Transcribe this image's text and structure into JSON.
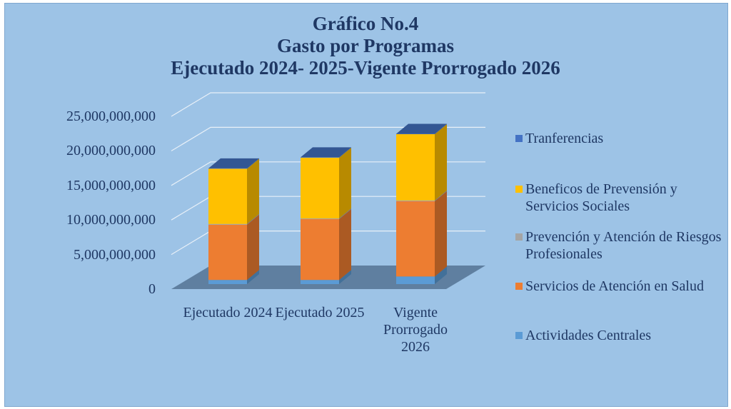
{
  "chart_data": {
    "type": "bar3d_stacked",
    "title": [
      "Gráfico No.4",
      "Gasto por Programas",
      "Ejecutado 2024- 2025-Vigente Prorrogado 2026"
    ],
    "categories": [
      "Ejecutado 2024",
      "Ejecutado 2025",
      "Vigente Prorrogado 2026"
    ],
    "series": [
      {
        "name": "Actividades Centrales",
        "color": "#5b9bd5",
        "values": [
          600000000,
          600000000,
          1100000000
        ]
      },
      {
        "name": "Servicios de Atención en Salud",
        "color": "#ed7d31",
        "values": [
          8000000000,
          8800000000,
          10900000000
        ]
      },
      {
        "name": "Prevención y Atención de Riesgos Profesionales",
        "color": "#a5a5a5",
        "values": [
          100000000,
          100000000,
          100000000
        ]
      },
      {
        "name": "Beneficos de Prevensión y Servicios Sociales",
        "color": "#ffc000",
        "values": [
          8000000000,
          8800000000,
          9600000000
        ]
      },
      {
        "name": "Tranferencias",
        "color": "#4472c4",
        "values": [
          50000000,
          50000000,
          50000000
        ]
      }
    ],
    "ylim": [
      0,
      25000000000
    ],
    "yticks": [
      0,
      {
        "value": 5000000000,
        "label": "5,000,000,000"
      },
      {
        "value": 10000000000,
        "label": "10,000,000,000"
      },
      {
        "value": 15000000000,
        "label": "15,000,000,000"
      },
      {
        "value": 20000000000,
        "label": "20,000,000,000"
      },
      {
        "value": 25000000000,
        "label": "25,000,000,000"
      }
    ],
    "grid": true,
    "legend": "right"
  }
}
